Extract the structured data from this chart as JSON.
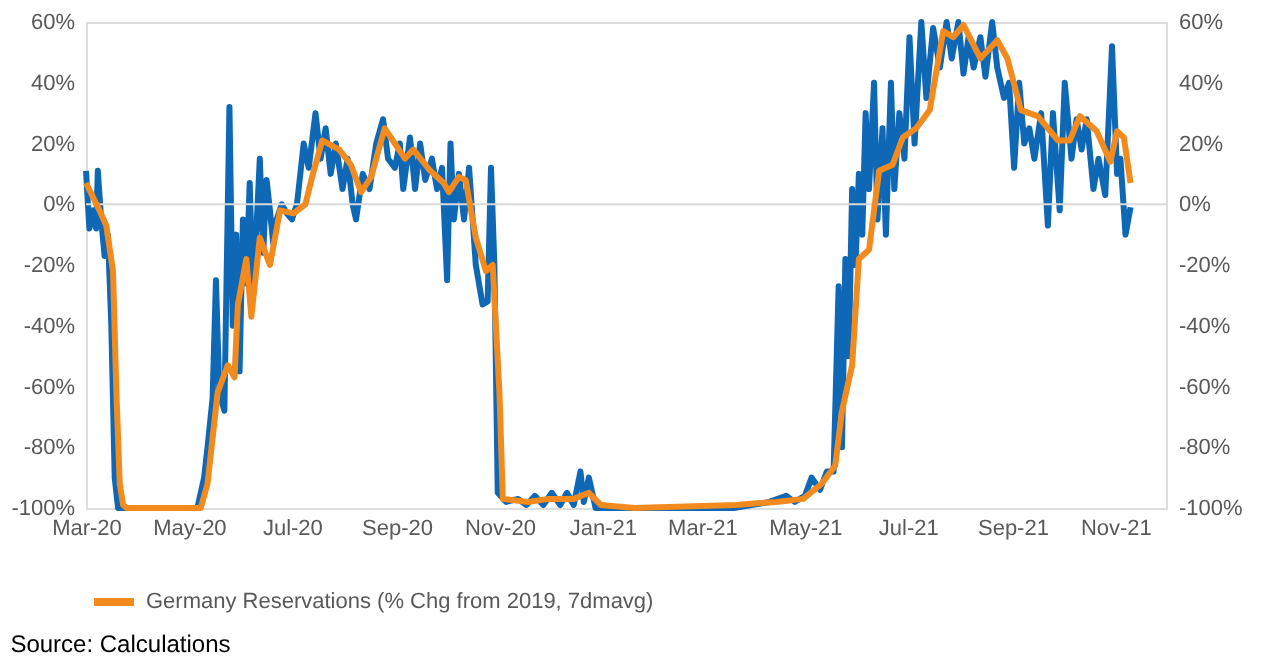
{
  "chart_data": {
    "type": "line",
    "annotations": [
      "Source: Calculations"
    ],
    "xlim": [
      "2020-03-01",
      "2021-12-01"
    ],
    "xticks": [
      {
        "value": "2020-03-01",
        "label": "Mar-20"
      },
      {
        "value": "2020-05-01",
        "label": "May-20"
      },
      {
        "value": "2020-07-01",
        "label": "Jul-20"
      },
      {
        "value": "2020-09-01",
        "label": "Sep-20"
      },
      {
        "value": "2020-11-01",
        "label": "Nov-20"
      },
      {
        "value": "2021-01-01",
        "label": "Jan-21"
      },
      {
        "value": "2021-03-01",
        "label": "Mar-21"
      },
      {
        "value": "2021-05-01",
        "label": "May-21"
      },
      {
        "value": "2021-07-01",
        "label": "Jul-21"
      },
      {
        "value": "2021-09-01",
        "label": "Sep-21"
      },
      {
        "value": "2021-11-01",
        "label": "Nov-21"
      }
    ],
    "ylim": [
      -100,
      60
    ],
    "yticks": [
      {
        "value": -100,
        "label": "-100%"
      },
      {
        "value": -80,
        "label": "-80%"
      },
      {
        "value": -60,
        "label": "-60%"
      },
      {
        "value": -40,
        "label": "-40%"
      },
      {
        "value": -20,
        "label": "-20%"
      },
      {
        "value": 0,
        "label": "0%"
      },
      {
        "value": 20,
        "label": "20%"
      },
      {
        "value": 40,
        "label": "40%"
      },
      {
        "value": 60,
        "label": "60%"
      }
    ],
    "y2lim": [
      -100,
      60
    ],
    "y2ticks": [
      {
        "value": -100,
        "label": "-100%"
      },
      {
        "value": -80,
        "label": "-80%"
      },
      {
        "value": -60,
        "label": "-60%"
      },
      {
        "value": -40,
        "label": "-40%"
      },
      {
        "value": -20,
        "label": "-20%"
      },
      {
        "value": 0,
        "label": "0%"
      },
      {
        "value": 20,
        "label": "20%"
      },
      {
        "value": 40,
        "label": "40%"
      },
      {
        "value": 60,
        "label": "60%"
      }
    ],
    "ref_lines": [
      {
        "axis": "y",
        "value": 0,
        "color": "#d9d9d9"
      }
    ],
    "grid": false,
    "legend": "bottom",
    "marker": "none",
    "line_style": "solid",
    "series": [
      {
        "color": "#0f68b5",
        "x": [
          "2020-03-01",
          "2020-03-03",
          "2020-03-05",
          "2020-03-07",
          "2020-03-08",
          "2020-03-10",
          "2020-03-12",
          "2020-03-14",
          "2020-03-16",
          "2020-03-18",
          "2020-03-20",
          "2020-05-06",
          "2020-05-10",
          "2020-05-12",
          "2020-05-15",
          "2020-05-17",
          "2020-05-19",
          "2020-05-22",
          "2020-05-25",
          "2020-05-27",
          "2020-05-29",
          "2020-05-31",
          "2020-06-02",
          "2020-06-04",
          "2020-06-06",
          "2020-06-08",
          "2020-06-10",
          "2020-06-12",
          "2020-06-14",
          "2020-06-16",
          "2020-06-18",
          "2020-06-20",
          "2020-06-22",
          "2020-06-25",
          "2020-06-28",
          "2020-07-01",
          "2020-07-04",
          "2020-07-08",
          "2020-07-11",
          "2020-07-15",
          "2020-07-18",
          "2020-07-21",
          "2020-07-24",
          "2020-07-27",
          "2020-07-31",
          "2020-08-03",
          "2020-08-06",
          "2020-08-08",
          "2020-08-12",
          "2020-08-16",
          "2020-08-20",
          "2020-08-24",
          "2020-08-27",
          "2020-08-31",
          "2020-09-03",
          "2020-09-05",
          "2020-09-09",
          "2020-09-12",
          "2020-09-15",
          "2020-09-18",
          "2020-09-22",
          "2020-09-25",
          "2020-09-28",
          "2020-10-01",
          "2020-10-03",
          "2020-10-05",
          "2020-10-08",
          "2020-10-11",
          "2020-10-14",
          "2020-10-18",
          "2020-10-22",
          "2020-10-25",
          "2020-10-27",
          "2020-10-29",
          "2020-10-31",
          "2020-11-05",
          "2020-11-12",
          "2020-11-17",
          "2020-11-22",
          "2020-11-27",
          "2020-12-02",
          "2020-12-07",
          "2020-12-11",
          "2020-12-15",
          "2020-12-19",
          "2020-12-21",
          "2020-12-24",
          "2020-12-28",
          "2021-03-20",
          "2021-04-10",
          "2021-04-20",
          "2021-04-25",
          "2021-05-01",
          "2021-05-05",
          "2021-05-10",
          "2021-05-14",
          "2021-05-18",
          "2021-05-21",
          "2021-05-23",
          "2021-05-25",
          "2021-05-27",
          "2021-05-29",
          "2021-05-31",
          "2021-06-02",
          "2021-06-04",
          "2021-06-06",
          "2021-06-08",
          "2021-06-11",
          "2021-06-13",
          "2021-06-16",
          "2021-06-18",
          "2021-06-21",
          "2021-06-23",
          "2021-06-26",
          "2021-06-29",
          "2021-07-02",
          "2021-07-05",
          "2021-07-09",
          "2021-07-12",
          "2021-07-16",
          "2021-07-20",
          "2021-07-24",
          "2021-07-27",
          "2021-07-31",
          "2021-08-03",
          "2021-08-06",
          "2021-08-09",
          "2021-08-13",
          "2021-08-16",
          "2021-08-20",
          "2021-08-23",
          "2021-08-27",
          "2021-08-30",
          "2021-09-02",
          "2021-09-05",
          "2021-09-08",
          "2021-09-11",
          "2021-09-14",
          "2021-09-18",
          "2021-09-22",
          "2021-09-25",
          "2021-09-29",
          "2021-10-02",
          "2021-10-06",
          "2021-10-09",
          "2021-10-12",
          "2021-10-15",
          "2021-10-19",
          "2021-10-22",
          "2021-10-26",
          "2021-10-30",
          "2021-11-02",
          "2021-11-04",
          "2021-11-07",
          "2021-11-10"
        ],
        "values": [
          11,
          -8,
          -2,
          -8,
          11,
          -5,
          -17,
          -10,
          -40,
          -90,
          -100,
          -100,
          -90,
          -80,
          -64,
          -25,
          -62,
          -68,
          32,
          -40,
          -10,
          -55,
          -5,
          -26,
          7,
          -30,
          -8,
          15,
          -16,
          8,
          -2,
          -13,
          -5,
          0,
          -3,
          -5,
          0,
          20,
          12,
          30,
          15,
          25,
          10,
          20,
          5,
          15,
          0,
          -5,
          10,
          5,
          20,
          28,
          15,
          12,
          20,
          5,
          22,
          5,
          20,
          8,
          15,
          5,
          12,
          -25,
          20,
          -5,
          10,
          -5,
          12,
          -20,
          -33,
          -32,
          12,
          -20,
          -95,
          -98,
          -97,
          -99,
          -96,
          -99,
          -95,
          -99,
          -95,
          -99,
          -88,
          -98,
          -90,
          -100,
          -100,
          -98,
          -96,
          -98,
          -96,
          -90,
          -94,
          -88,
          -88,
          -27,
          -80,
          -18,
          -50,
          5,
          -20,
          10,
          -10,
          30,
          5,
          40,
          -5,
          25,
          -10,
          40,
          5,
          30,
          15,
          55,
          20,
          60,
          35,
          58,
          45,
          60,
          48,
          60,
          43,
          55,
          45,
          55,
          42,
          60,
          45,
          35,
          40,
          12,
          40,
          20,
          25,
          15,
          30,
          -7,
          30,
          -2,
          40,
          15,
          28,
          18,
          28,
          5,
          15,
          3,
          52,
          10,
          15,
          -10,
          -1
        ]
      },
      {
        "name": "Germany Reservations (% Chg from 2019, 7dmavg)",
        "color": "#f28a1e",
        "axis": "y2",
        "x": [
          "2020-03-01",
          "2020-03-09",
          "2020-03-13",
          "2020-03-17",
          "2020-03-19",
          "2020-03-21",
          "2020-03-23",
          "2020-03-25",
          "2020-05-08",
          "2020-05-12",
          "2020-05-18",
          "2020-05-24",
          "2020-05-28",
          "2020-05-30",
          "2020-06-04",
          "2020-06-07",
          "2020-06-12",
          "2020-06-18",
          "2020-06-24",
          "2020-07-02",
          "2020-07-09",
          "2020-07-13",
          "2020-07-19",
          "2020-07-29",
          "2020-08-05",
          "2020-08-11",
          "2020-08-17",
          "2020-08-25",
          "2020-08-31",
          "2020-09-06",
          "2020-09-11",
          "2020-09-21",
          "2020-09-29",
          "2020-10-02",
          "2020-10-08",
          "2020-10-12",
          "2020-10-18",
          "2020-10-24",
          "2020-10-28",
          "2020-11-01",
          "2020-11-03",
          "2020-11-18",
          "2020-11-30",
          "2020-12-15",
          "2020-12-24",
          "2020-12-31",
          "2021-01-20",
          "2021-03-21",
          "2021-04-14",
          "2021-04-30",
          "2021-05-11",
          "2021-05-19",
          "2021-05-23",
          "2021-05-29",
          "2021-06-02",
          "2021-06-08",
          "2021-06-14",
          "2021-06-22",
          "2021-06-28",
          "2021-07-06",
          "2021-07-14",
          "2021-07-22",
          "2021-07-28",
          "2021-08-03",
          "2021-08-13",
          "2021-08-23",
          "2021-08-29",
          "2021-09-06",
          "2021-09-16",
          "2021-09-28",
          "2021-10-05",
          "2021-10-11",
          "2021-10-21",
          "2021-10-29",
          "2021-11-02",
          "2021-11-06",
          "2021-11-10"
        ],
        "values": [
          7,
          -2,
          -7,
          -22,
          -62,
          -92,
          -99,
          -100,
          -100,
          -92,
          -62,
          -53,
          -57,
          -33,
          -18,
          -37,
          -11,
          -20,
          -2,
          -3,
          0,
          9,
          21,
          18,
          13,
          4,
          9,
          25,
          20,
          15,
          18,
          11,
          7,
          4,
          9,
          8,
          -11,
          -22,
          -20,
          -62,
          -97,
          -98,
          -97,
          -97,
          -95,
          -99,
          -100,
          -99,
          -98,
          -97,
          -92,
          -86,
          -68,
          -53,
          -18,
          -15,
          11,
          13,
          22,
          25,
          31,
          57,
          55,
          59,
          48,
          54,
          48,
          31,
          29,
          21,
          21,
          29,
          24,
          14,
          24,
          22,
          7
        ]
      }
    ]
  }
}
